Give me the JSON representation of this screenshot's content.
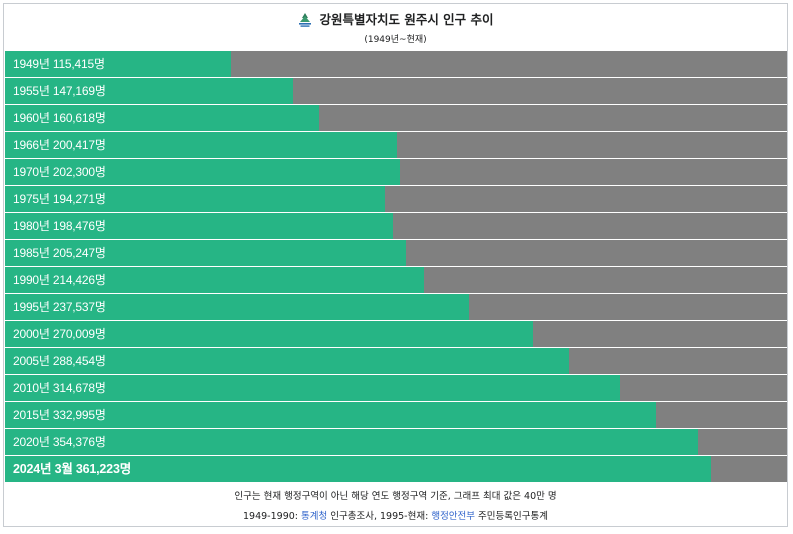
{
  "header": {
    "title": "강원특별자치도 원주시 인구 추이",
    "subtitle": "(1949년~현재)",
    "emblem_icon": "wonju-city-emblem-icon"
  },
  "colors": {
    "bar_fill": "#26b585",
    "bar_track": "#808080",
    "link": "#3366cc"
  },
  "chart_data": {
    "type": "bar",
    "orientation": "horizontal",
    "max_value": 400000,
    "unit": "명",
    "bars": [
      {
        "year": "1949",
        "value": 115415,
        "label": "1949년 115,415명"
      },
      {
        "year": "1955",
        "value": 147169,
        "label": "1955년 147,169명"
      },
      {
        "year": "1960",
        "value": 160618,
        "label": "1960년 160,618명"
      },
      {
        "year": "1966",
        "value": 200417,
        "label": "1966년 200,417명"
      },
      {
        "year": "1970",
        "value": 202300,
        "label": "1970년 202,300명"
      },
      {
        "year": "1975",
        "value": 194271,
        "label": "1975년 194,271명"
      },
      {
        "year": "1980",
        "value": 198476,
        "label": "1980년 198,476명"
      },
      {
        "year": "1985",
        "value": 205247,
        "label": "1985년 205,247명"
      },
      {
        "year": "1990",
        "value": 214426,
        "label": "1990년 214,426명"
      },
      {
        "year": "1995",
        "value": 237537,
        "label": "1995년 237,537명"
      },
      {
        "year": "2000",
        "value": 270009,
        "label": "2000년 270,009명"
      },
      {
        "year": "2005",
        "value": 288454,
        "label": "2005년 288,454명"
      },
      {
        "year": "2010",
        "value": 314678,
        "label": "2010년 314,678명"
      },
      {
        "year": "2015",
        "value": 332995,
        "label": "2015년 332,995명"
      },
      {
        "year": "2020",
        "value": 354376,
        "label": "2020년 354,376명"
      },
      {
        "year": "2024년 3월",
        "value": 361223,
        "label": "2024년 3월 361,223명",
        "current": true
      }
    ]
  },
  "footer": {
    "note": "인구는 현재 행정구역이 아닌 해당 연도 행정구역 기준, 그래프 최대 값은 40만 명",
    "sources_prefix": "1949-1990: ",
    "source1_link": "통계청",
    "source1_text": " 인구총조사, 1995-현재: ",
    "source2_link": "행정안전부",
    "source2_text": " 주민등록인구통계"
  }
}
